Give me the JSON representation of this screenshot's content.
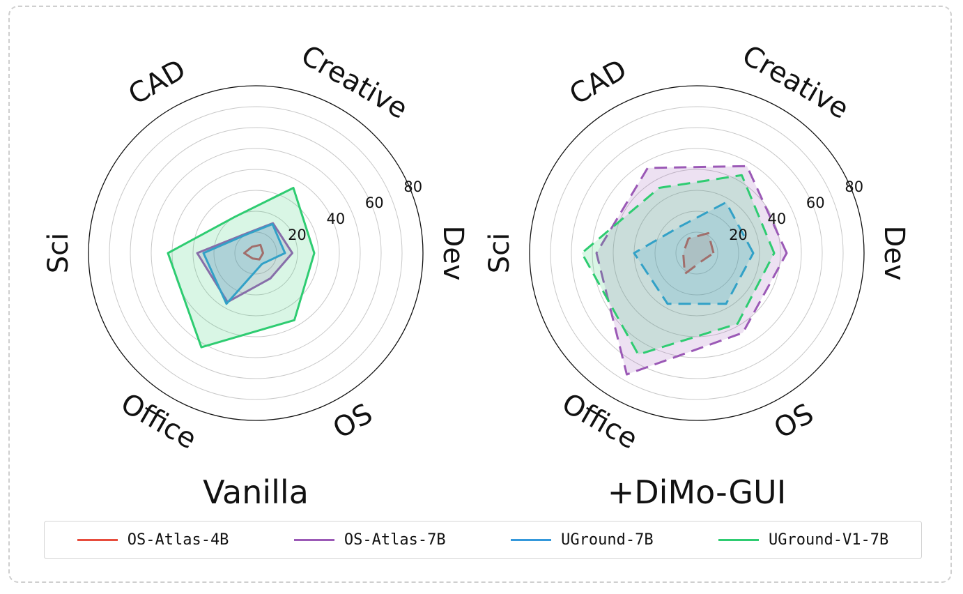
{
  "chart_data": [
    {
      "type": "radar",
      "title": "Vanilla",
      "categories": [
        "Dev",
        "Creative",
        "CAD",
        "Sci",
        "Office",
        "OS"
      ],
      "rticks": [
        "20",
        "40",
        "60",
        "80"
      ],
      "rlim": [
        0,
        80
      ],
      "series": [
        {
          "name": "OS-Atlas-4B",
          "values": [
            3.5,
            4.5,
            3.5,
            5.5,
            3.0,
            3.5
          ],
          "color": "#e74c3c",
          "style": "solid",
          "fill": false
        },
        {
          "name": "OS-Atlas-7B",
          "values": [
            17.5,
            16.5,
            10.5,
            28.0,
            27.0,
            14.0
          ],
          "color": "#9b59b6",
          "style": "solid",
          "fill": true
        },
        {
          "name": "UGround-7B",
          "values": [
            14.0,
            16.0,
            10.0,
            25.0,
            28.0,
            6.0
          ],
          "color": "#3498db",
          "style": "solid",
          "fill": true
        },
        {
          "name": "UGround-V1-7B",
          "values": [
            28.0,
            36.0,
            20.0,
            42.0,
            52.0,
            37.0
          ],
          "color": "#2ecc71",
          "style": "solid",
          "fill": true
        }
      ]
    },
    {
      "type": "radar",
      "title": "+DiMo-GUI",
      "categories": [
        "Dev",
        "Creative",
        "CAD",
        "Sci",
        "Office",
        "OS"
      ],
      "rticks": [
        "20",
        "40",
        "60",
        "80"
      ],
      "rlim": [
        0,
        80
      ],
      "series": [
        {
          "name": "OS-Atlas-4B",
          "values": [
            8.0,
            11.0,
            8.0,
            6.5,
            11.5,
            4.5
          ],
          "color": "#e74c3c",
          "style": "dashed",
          "fill": true
        },
        {
          "name": "OS-Atlas-7B",
          "values": [
            43.0,
            48.0,
            47.0,
            48.0,
            67.0,
            44.0
          ],
          "color": "#9b59b6",
          "style": "dashed",
          "fill": true
        },
        {
          "name": "UGround-7B",
          "values": [
            27.0,
            28.0,
            15.0,
            30.0,
            28.0,
            28.0
          ],
          "color": "#3498db",
          "style": "dashed",
          "fill": true
        },
        {
          "name": "UGround-V1-7B",
          "values": [
            37.0,
            43.0,
            36.0,
            55.0,
            56.0,
            39.0
          ],
          "color": "#2ecc71",
          "style": "dashed",
          "fill": true
        }
      ]
    }
  ],
  "legend": [
    {
      "label": "OS-Atlas-4B",
      "color": "#e74c3c"
    },
    {
      "label": "OS-Atlas-7B",
      "color": "#9b59b6"
    },
    {
      "label": "UGround-7B",
      "color": "#3498db"
    },
    {
      "label": "UGround-V1-7B",
      "color": "#2ecc71"
    }
  ]
}
